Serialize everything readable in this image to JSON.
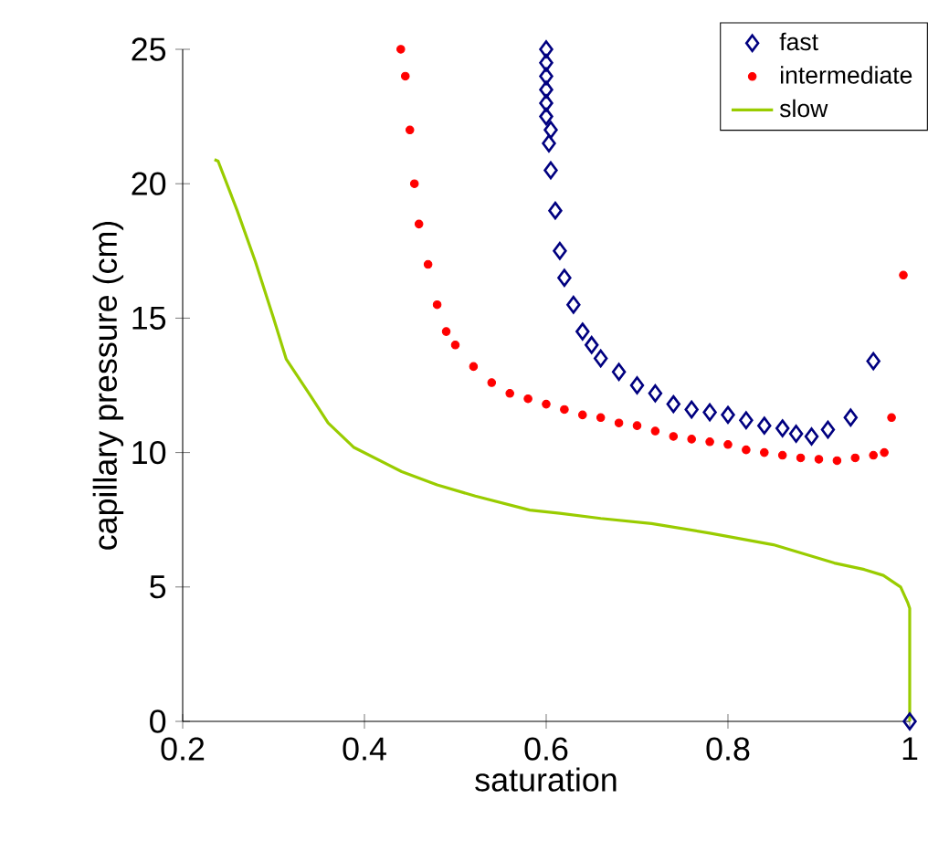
{
  "chart_data": {
    "type": "scatter",
    "xlabel": "saturation",
    "ylabel": "capillary pressure (cm)",
    "xlim": [
      0.2,
      1
    ],
    "ylim": [
      0,
      25
    ],
    "xticks": [
      0.2,
      0.4,
      0.6,
      0.8,
      1
    ],
    "yticks": [
      0,
      5,
      10,
      15,
      20,
      25
    ],
    "grid": false,
    "legend": "top right",
    "series": [
      {
        "name": "fast",
        "marker": "diamond",
        "color": "#000080",
        "x": [
          0.6,
          0.6,
          0.6,
          0.6,
          0.6,
          0.6,
          0.605,
          0.603,
          0.605,
          0.61,
          0.615,
          0.62,
          0.63,
          0.64,
          0.65,
          0.66,
          0.68,
          0.7,
          0.72,
          0.74,
          0.76,
          0.78,
          0.8,
          0.82,
          0.84,
          0.86,
          0.875,
          0.892,
          0.91,
          0.935,
          0.96,
          1.0
        ],
        "values": [
          25,
          24.5,
          24,
          23.5,
          23,
          22.5,
          22,
          21.5,
          20.5,
          19,
          17.5,
          16.5,
          15.5,
          14.5,
          14,
          13.5,
          13,
          12.5,
          12.2,
          11.8,
          11.6,
          11.5,
          11.4,
          11.2,
          11.0,
          10.9,
          10.7,
          10.6,
          10.85,
          11.3,
          13.4,
          0
        ]
      },
      {
        "name": "intermediate",
        "marker": "circle",
        "color": "#ff0000",
        "x": [
          0.44,
          0.445,
          0.45,
          0.455,
          0.46,
          0.47,
          0.48,
          0.49,
          0.5,
          0.52,
          0.54,
          0.56,
          0.58,
          0.6,
          0.62,
          0.64,
          0.66,
          0.68,
          0.7,
          0.72,
          0.74,
          0.76,
          0.78,
          0.8,
          0.82,
          0.84,
          0.86,
          0.88,
          0.9,
          0.92,
          0.94,
          0.96,
          0.972,
          0.98,
          0.993
        ],
        "values": [
          25,
          24,
          22,
          20,
          18.5,
          17,
          15.5,
          14.5,
          14,
          13.2,
          12.6,
          12.2,
          12,
          11.8,
          11.6,
          11.4,
          11.3,
          11.1,
          11.0,
          10.8,
          10.6,
          10.5,
          10.4,
          10.3,
          10.1,
          10.0,
          9.9,
          9.8,
          9.75,
          9.7,
          9.8,
          9.9,
          10.0,
          11.3,
          16.6
        ]
      },
      {
        "name": "slow",
        "type": "line",
        "marker": "none",
        "color": "#99cc00",
        "x": [
          0.235,
          0.239,
          0.26,
          0.28,
          0.3,
          0.314,
          0.341,
          0.36,
          0.388,
          0.441,
          0.48,
          0.522,
          0.582,
          0.615,
          0.66,
          0.716,
          0.78,
          0.85,
          0.917,
          0.95,
          0.971,
          0.99,
          0.998,
          1.0,
          1.0
        ],
        "values": [
          20.9,
          20.84,
          19.0,
          17.1,
          15.0,
          13.47,
          12.1,
          11.1,
          10.2,
          9.29,
          8.8,
          8.38,
          7.86,
          7.74,
          7.55,
          7.36,
          7.0,
          6.57,
          5.89,
          5.65,
          5.43,
          5.0,
          4.4,
          4.2,
          0
        ]
      }
    ]
  }
}
